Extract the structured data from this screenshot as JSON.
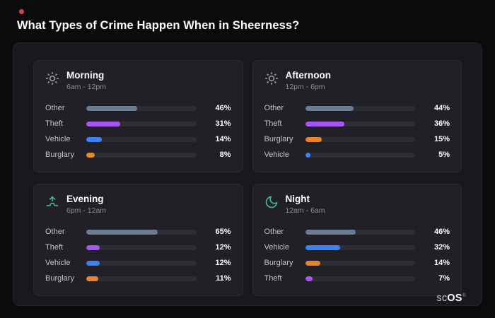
{
  "page": {
    "title": "What Types of Crime Happen When in Sheerness?"
  },
  "brand": {
    "prefix": "sc",
    "suffix": "OS",
    "mark": "®"
  },
  "colors": {
    "background": "#0b0b0d",
    "panel": "#19191d",
    "card": "#202026",
    "track": "#2d2d34",
    "other": "#6b7c95",
    "theft": "#a855f7",
    "vehicle": "#3b82f6",
    "burglary": "#e8842c",
    "icon_sun": "#8a9a96",
    "icon_teal": "#3eb8a0",
    "dot": "#dd4040"
  },
  "chart_data": [
    {
      "type": "bar",
      "title": "Morning",
      "subtitle": "6am - 12pm",
      "icon": "sun-icon",
      "orientation": "horizontal",
      "categories": [
        "Other",
        "Theft",
        "Vehicle",
        "Burglary"
      ],
      "values": [
        46,
        31,
        14,
        8
      ],
      "display": [
        "46%",
        "31%",
        "14%",
        "8%"
      ],
      "xlim": [
        0,
        100
      ]
    },
    {
      "type": "bar",
      "title": "Afternoon",
      "subtitle": "12pm - 6pm",
      "icon": "sun-icon",
      "orientation": "horizontal",
      "categories": [
        "Other",
        "Theft",
        "Burglary",
        "Vehicle"
      ],
      "values": [
        44,
        36,
        15,
        5
      ],
      "display": [
        "44%",
        "36%",
        "15%",
        "5%"
      ],
      "xlim": [
        0,
        100
      ]
    },
    {
      "type": "bar",
      "title": "Evening",
      "subtitle": "6pm - 12am",
      "icon": "sunrise-icon",
      "orientation": "horizontal",
      "categories": [
        "Other",
        "Theft",
        "Vehicle",
        "Burglary"
      ],
      "values": [
        65,
        12,
        12,
        11
      ],
      "display": [
        "65%",
        "12%",
        "12%",
        "11%"
      ],
      "xlim": [
        0,
        100
      ]
    },
    {
      "type": "bar",
      "title": "Night",
      "subtitle": "12am - 6am",
      "icon": "moon-icon",
      "orientation": "horizontal",
      "categories": [
        "Other",
        "Vehicle",
        "Burglary",
        "Theft"
      ],
      "values": [
        46,
        32,
        14,
        7
      ],
      "display": [
        "46%",
        "32%",
        "14%",
        "7%"
      ],
      "xlim": [
        0,
        100
      ]
    }
  ]
}
